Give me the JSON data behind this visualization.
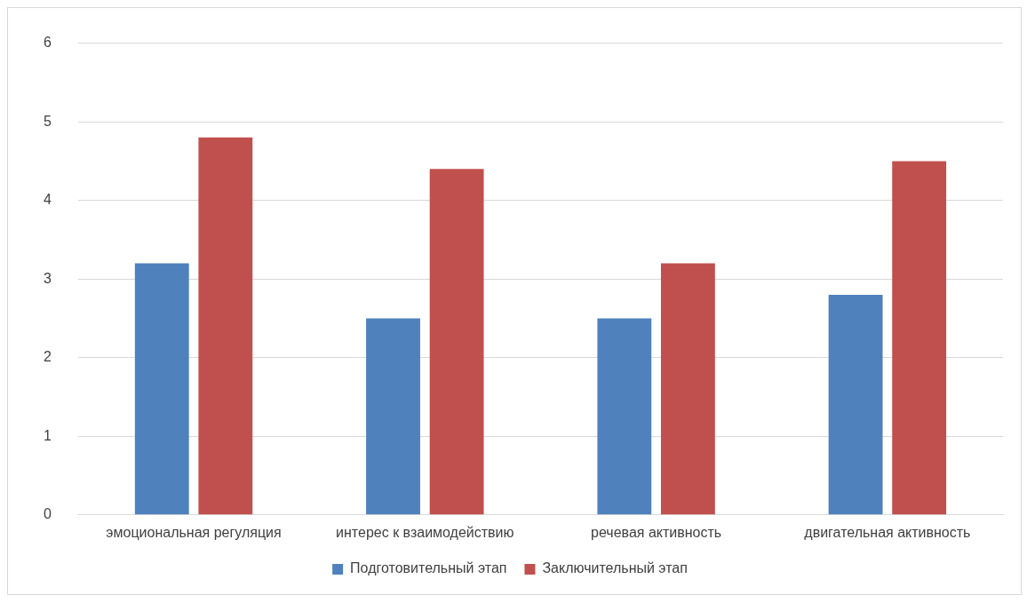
{
  "chart_data": {
    "type": "bar",
    "categories": [
      "эмоциональная регуляция",
      "интерес к взаимодействию",
      "речевая активность",
      "двигательная активность"
    ],
    "series": [
      {
        "name": "Подготовительный этап",
        "color": "#4f81bd",
        "values": [
          3.2,
          2.5,
          2.5,
          2.8
        ]
      },
      {
        "name": "Заключительный этап",
        "color": "#c0504d",
        "values": [
          4.8,
          4.4,
          3.2,
          4.5
        ]
      }
    ],
    "ylim": [
      0,
      6
    ],
    "yticks": [
      0,
      1,
      2,
      3,
      4,
      5,
      6
    ],
    "grid": "y",
    "legend": "bottom"
  }
}
